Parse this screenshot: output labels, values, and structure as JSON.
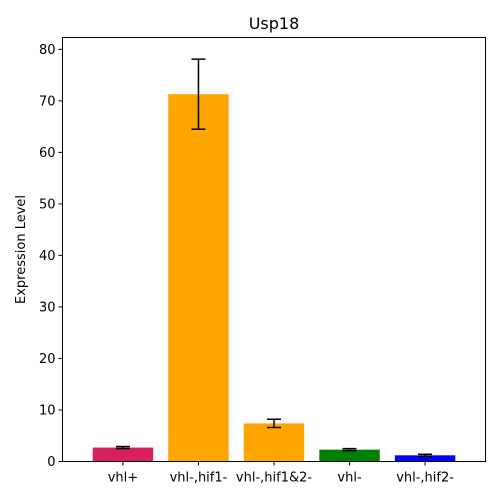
{
  "chart_data": {
    "type": "bar",
    "title": "Usp18",
    "xlabel": "",
    "ylabel": "Expression Level",
    "ylim": [
      0,
      82.3
    ],
    "yticks": [
      0,
      10,
      20,
      30,
      40,
      50,
      60,
      70,
      80
    ],
    "categories": [
      "vhl+",
      "vhl-,hif1-",
      "vhl-,hif1&2-",
      "vhl-",
      "vhl-,hif2-"
    ],
    "values": [
      2.7,
      71.3,
      7.4,
      2.3,
      1.2
    ],
    "errors": [
      0.2,
      6.8,
      0.8,
      0.2,
      0.2
    ],
    "colors": [
      "#d81f60",
      "#ffa500",
      "#ffa500",
      "#008000",
      "#0000ff"
    ],
    "grid": false,
    "legend": "none"
  }
}
